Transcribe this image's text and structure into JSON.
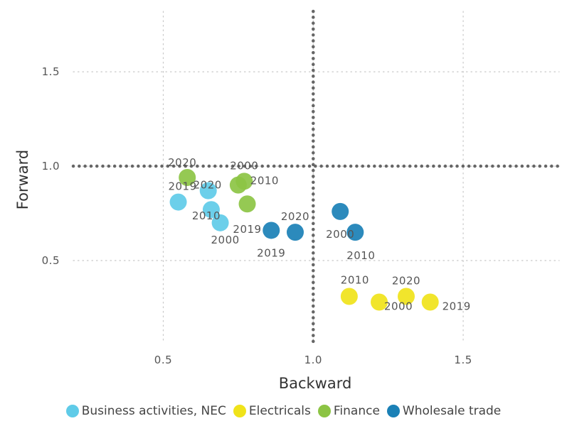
{
  "chart_data": {
    "type": "scatter",
    "xlabel": "Backward",
    "ylabel": "Forward",
    "xlim": [
      0.2,
      1.82
    ],
    "ylim": [
      0.06,
      1.82
    ],
    "xticks": [
      "0.5",
      "1.0",
      "1.5"
    ],
    "yticks": [
      "0.5",
      "1.0",
      "1.5"
    ],
    "reference_lines": {
      "x": 1.0,
      "y": 1.0
    },
    "grid": "dotted",
    "legend_position": "bottom",
    "series": [
      {
        "name": "Business activities, NEC",
        "color": "#5fcbe8",
        "points": [
          {
            "label": "2000",
            "x": 0.69,
            "y": 0.7
          },
          {
            "label": "2010",
            "x": 0.66,
            "y": 0.77
          },
          {
            "label": "2019",
            "x": 0.55,
            "y": 0.81
          },
          {
            "label": "2020",
            "x": 0.65,
            "y": 0.87
          }
        ]
      },
      {
        "name": "Electricals",
        "color": "#f0e31a",
        "points": [
          {
            "label": "2000",
            "x": 1.22,
            "y": 0.28
          },
          {
            "label": "2010",
            "x": 1.12,
            "y": 0.31
          },
          {
            "label": "2019",
            "x": 1.39,
            "y": 0.28
          },
          {
            "label": "2020",
            "x": 1.31,
            "y": 0.31
          }
        ]
      },
      {
        "name": "Finance",
        "color": "#8cc444",
        "points": [
          {
            "label": "2000",
            "x": 0.77,
            "y": 0.92
          },
          {
            "label": "2010",
            "x": 0.75,
            "y": 0.9
          },
          {
            "label": "2019",
            "x": 0.78,
            "y": 0.8
          },
          {
            "label": "2020",
            "x": 0.58,
            "y": 0.94
          }
        ]
      },
      {
        "name": "Wholesale trade",
        "color": "#1a80b6",
        "points": [
          {
            "label": "2000",
            "x": 1.09,
            "y": 0.76
          },
          {
            "label": "2010",
            "x": 1.14,
            "y": 0.65
          },
          {
            "label": "2019",
            "x": 0.86,
            "y": 0.66
          },
          {
            "label": "2020",
            "x": 0.94,
            "y": 0.65
          }
        ]
      }
    ]
  }
}
